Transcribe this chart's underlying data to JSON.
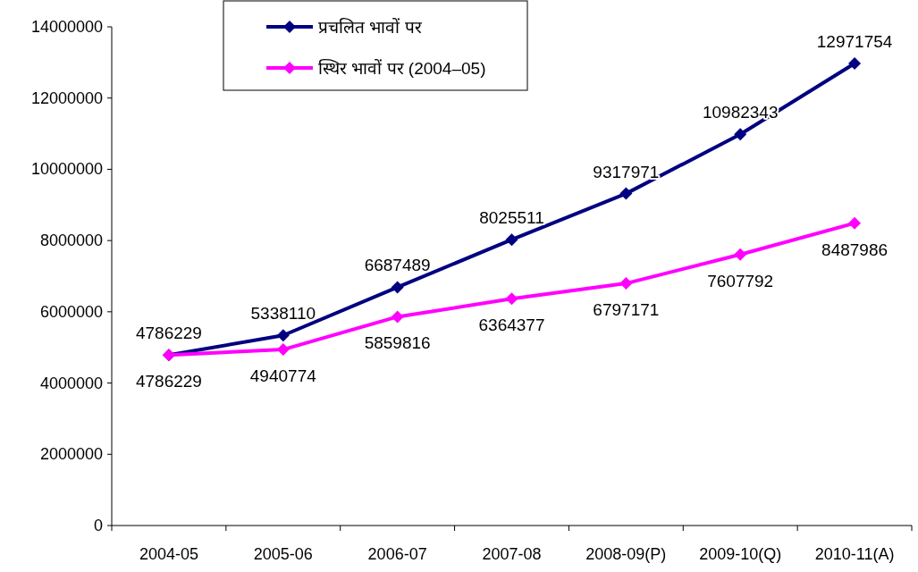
{
  "chart_data": {
    "type": "line",
    "categories": [
      "2004-05",
      "2005-06",
      "2006-07",
      "2007-08",
      "2008-09(P)",
      "2009-10(Q)",
      "2010-11(A)"
    ],
    "series": [
      {
        "name": "प्रचलित भावों पर",
        "color": "#000080",
        "values": [
          4786229,
          5338110,
          6687489,
          8025511,
          9317971,
          10982343,
          12971754
        ]
      },
      {
        "name": "स्थिर भावों पर (2004–05)",
        "color": "#ff00ff",
        "values": [
          4786229,
          4940774,
          5859816,
          6364377,
          6797171,
          7607792,
          8487986
        ]
      }
    ],
    "ylim": [
      0,
      14000000
    ],
    "yticks": [
      0,
      2000000,
      4000000,
      6000000,
      8000000,
      10000000,
      12000000,
      14000000
    ],
    "data_labels": true,
    "marker": "diamond",
    "legend": "top",
    "grid": false
  }
}
